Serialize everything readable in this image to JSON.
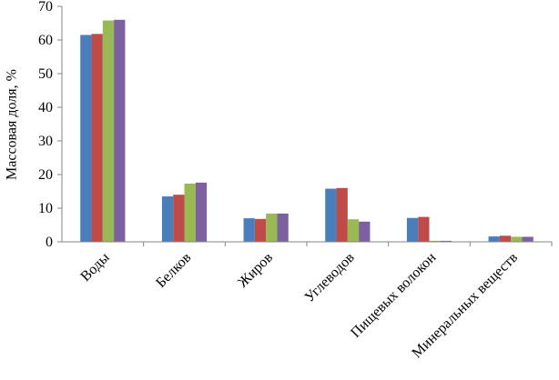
{
  "chart_data": {
    "type": "bar",
    "y_label": "Массовая доля, %",
    "categories": [
      "Воды",
      "Белков",
      "Жиров",
      "Углеводов",
      "Пищевых волокон",
      "Минеральных веществ"
    ],
    "series": [
      {
        "color": "#4a7ebb",
        "values": [
          61.5,
          13.5,
          7.0,
          15.8,
          7.1,
          1.6
        ]
      },
      {
        "color": "#be4b48",
        "values": [
          61.8,
          14.0,
          6.8,
          16.0,
          7.4,
          1.8
        ]
      },
      {
        "color": "#98b954",
        "values": [
          65.8,
          17.3,
          8.4,
          6.7,
          0.3,
          1.5
        ]
      },
      {
        "color": "#7d60a0",
        "values": [
          66.0,
          17.6,
          8.4,
          6.0,
          0.3,
          1.5
        ]
      }
    ],
    "ylim": [
      0,
      70
    ],
    "yticks": [
      0,
      10,
      20,
      30,
      40,
      50,
      60,
      70
    ],
    "grid": false
  }
}
